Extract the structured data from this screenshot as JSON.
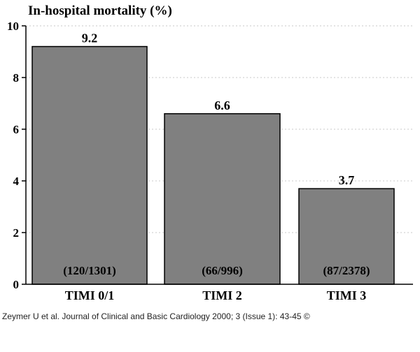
{
  "chart_data": {
    "type": "bar",
    "title": "In-hospital mortality (%)",
    "categories": [
      "TIMI 0/1",
      "TIMI 2",
      "TIMI 3"
    ],
    "values": [
      9.2,
      6.6,
      3.7
    ],
    "value_labels": [
      "9.2",
      "6.6",
      "3.7"
    ],
    "counts": [
      "(120/1301)",
      "(66/996)",
      "(87/2378)"
    ],
    "ylim": [
      0,
      10
    ],
    "yticks": [
      "0",
      "2",
      "4",
      "6",
      "8",
      "10"
    ],
    "grid": "dotted horizontal",
    "colors": {
      "bar": "#808080",
      "bar_outline": "#000000",
      "grid": "#c8c8c8"
    }
  },
  "citation": "Zeymer U et al. Journal of Clinical and Basic Cardiology 2000; 3 (Issue 1): 43-45 ©"
}
